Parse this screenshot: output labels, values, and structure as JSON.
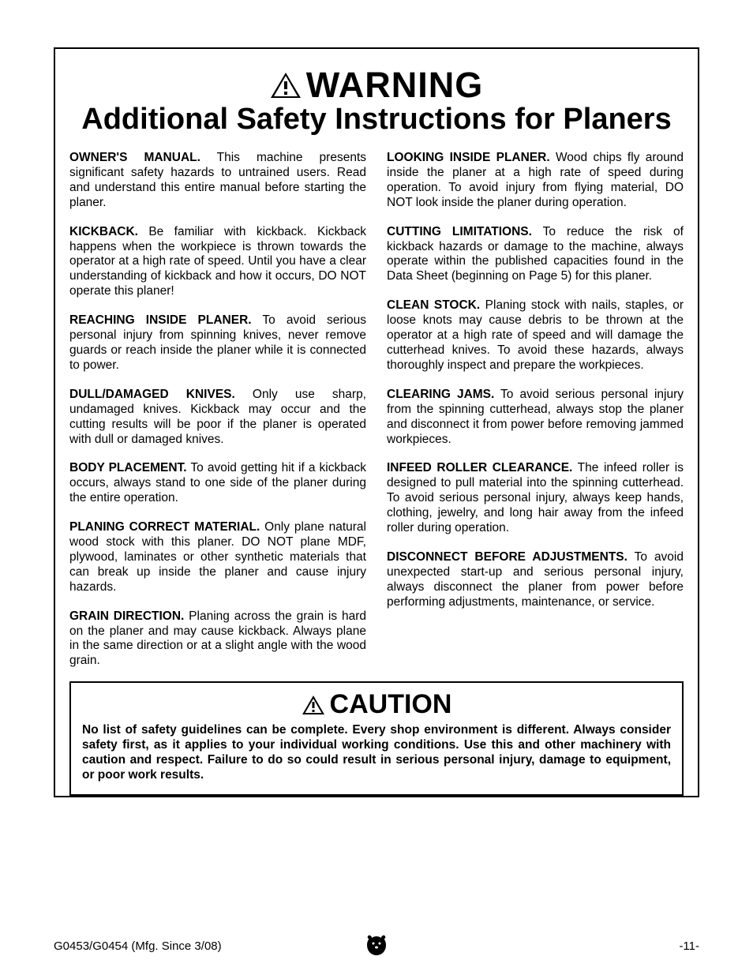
{
  "header": {
    "warning_label": "WARNING",
    "subtitle": "Additional Safety Instructions for Planers"
  },
  "left_column": [
    {
      "lead": "OWNER'S MANUAL.",
      "body": " This machine presents significant safety hazards to untrained users. Read and understand this entire manual before starting the planer."
    },
    {
      "lead": "KICKBACK.",
      "body": " Be familiar with kickback. Kickback happens when the workpiece is thrown towards the operator at a high rate of speed. Until you have a clear understanding of kickback and how it occurs, DO NOT operate this planer!"
    },
    {
      "lead": "REACHING INSIDE PLANER.",
      "body": " To avoid serious personal injury from spinning knives, never remove guards or reach inside the planer while it is connected to power."
    },
    {
      "lead": "DULL/DAMAGED KNIVES.",
      "body": " Only use sharp, undamaged knives. Kickback may occur and the cutting results will be poor if the planer is operated with dull or damaged knives."
    },
    {
      "lead": "BODY PLACEMENT.",
      "body": " To avoid getting hit if a kickback occurs, always stand to one side of the planer during the entire operation."
    },
    {
      "lead": "PLANING CORRECT MATERIAL.",
      "body": " Only plane natural wood stock with this planer. DO NOT plane MDF, plywood, laminates or other synthetic materials that can break up inside the planer and cause injury hazards."
    },
    {
      "lead": "GRAIN DIRECTION.",
      "body": " Planing across the grain is hard on the planer and may cause kickback. Always plane in the same direction or at a slight angle with the wood grain."
    }
  ],
  "right_column": [
    {
      "lead": "LOOKING INSIDE PLANER.",
      "body": " Wood chips fly around inside the planer at a high rate of speed during operation. To avoid injury from flying material, DO NOT look inside the planer during operation."
    },
    {
      "lead": "CUTTING LIMITATIONS.",
      "body": " To reduce the risk of kickback hazards or damage to the machine, always operate within the published capacities found in the Data Sheet (beginning on Page 5) for this planer."
    },
    {
      "lead": "CLEAN STOCK.",
      "body": " Planing stock with nails, staples, or loose knots may cause debris to be thrown at the operator at a high rate of speed and will damage the cutterhead knives. To avoid these hazards, always thoroughly inspect and prepare the workpieces."
    },
    {
      "lead": "CLEARING JAMS.",
      "body": " To avoid serious personal injury from the spinning cutterhead, always stop the planer and disconnect it from power before removing jammed workpieces."
    },
    {
      "lead": "INFEED ROLLER CLEARANCE.",
      "body": " The infeed roller is designed to pull material into the spinning cutterhead. To avoid serious personal injury, always keep hands, clothing, jewelry, and long hair away from the infeed roller during operation."
    },
    {
      "lead": "DISCONNECT BEFORE ADJUSTMENTS.",
      "body": " To avoid unexpected start-up and serious personal injury, always disconnect the planer from power before performing adjustments, maintenance, or service."
    }
  ],
  "caution": {
    "label": "CAUTION",
    "text": "No list of safety guidelines can be complete. Every shop environment is different. Always consider safety first, as it applies to your individual working conditions. Use this and other machinery with caution and respect. Failure to do so could result in serious personal injury, damage to equipment, or poor work results."
  },
  "footer": {
    "left": "G0453/G0454 (Mfg. Since 3/08)",
    "right": "-11-"
  },
  "colors": {
    "text": "#000000",
    "background": "#ffffff",
    "border": "#000000"
  }
}
